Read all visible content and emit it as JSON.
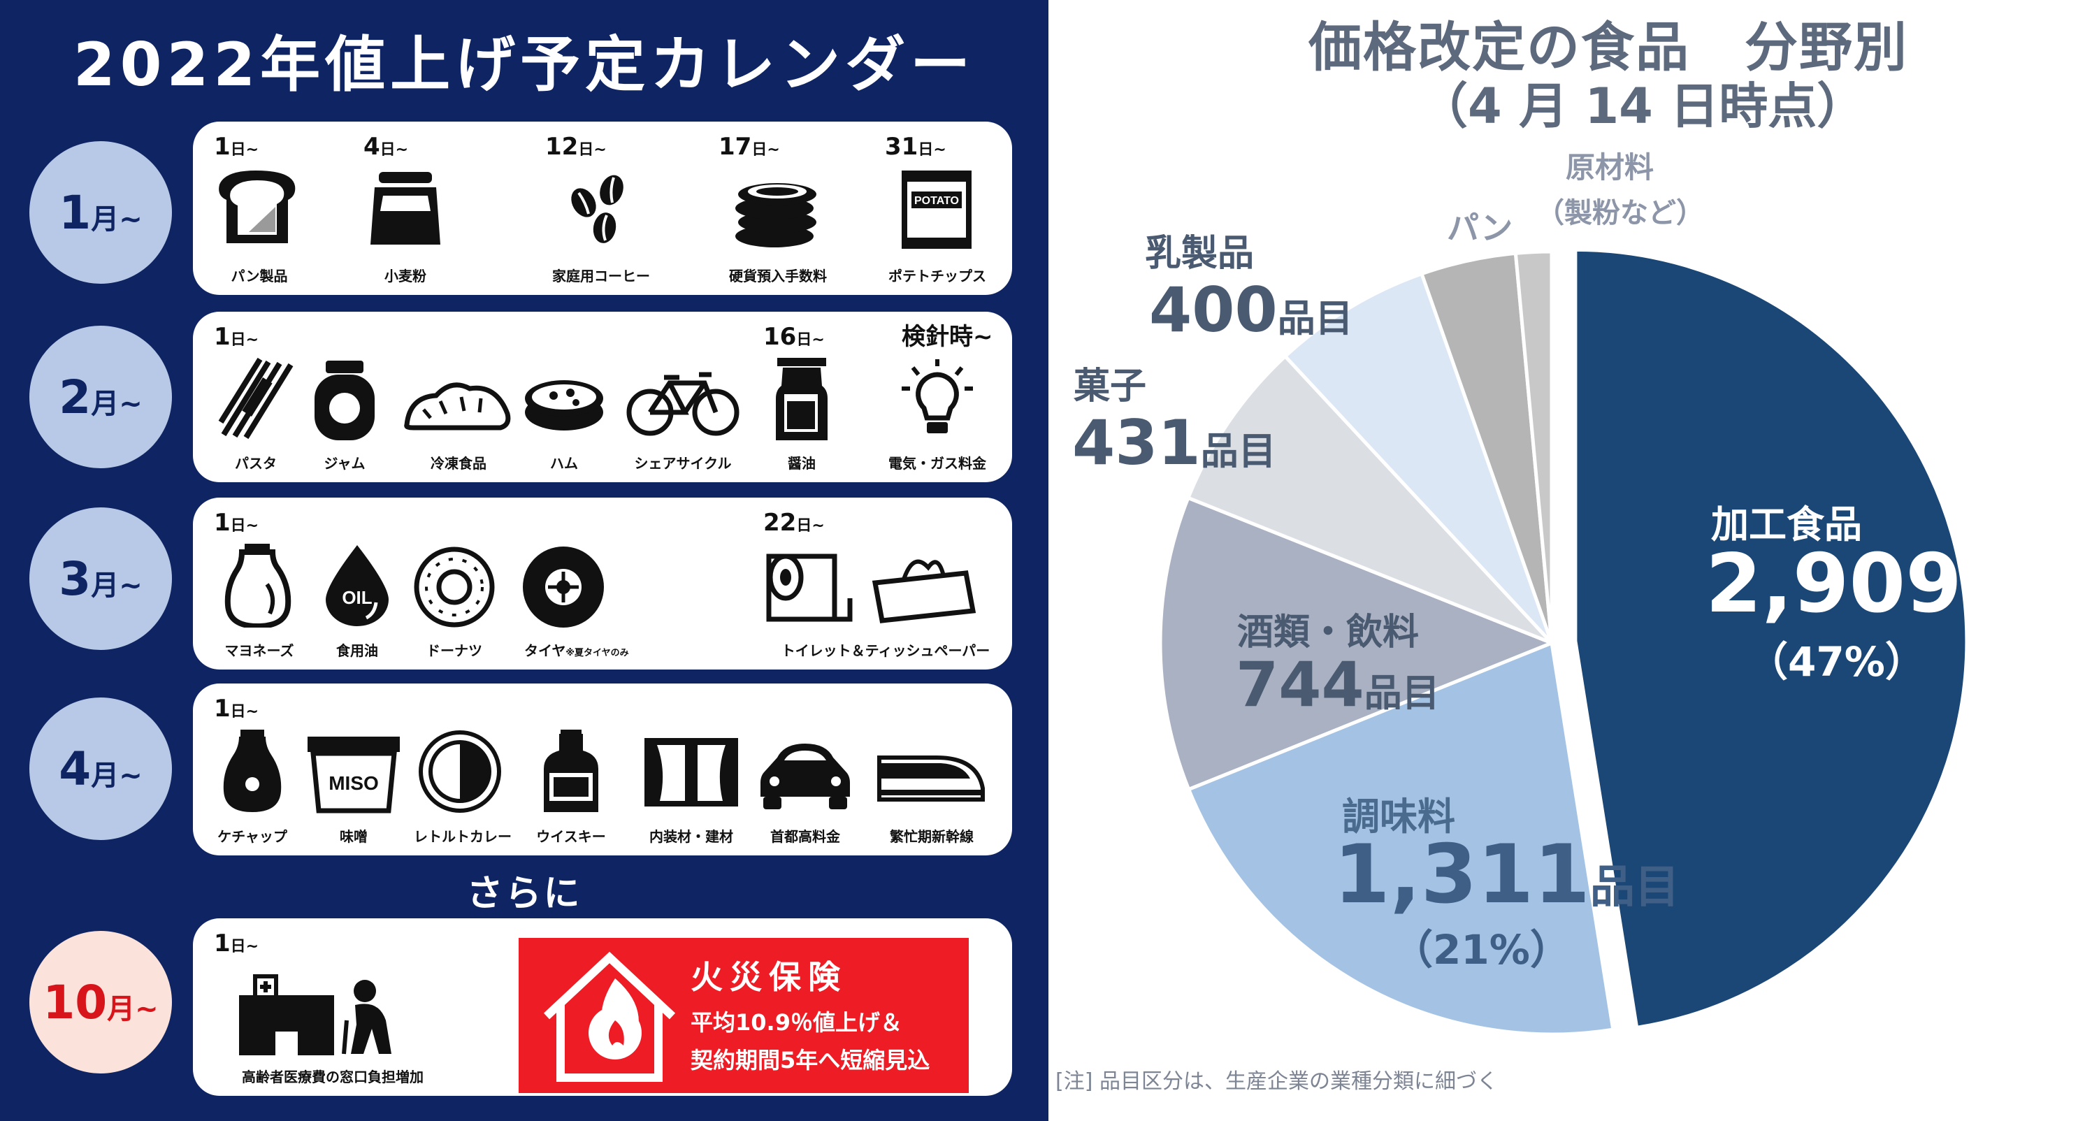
{
  "calendar": {
    "title": "2022年値上げ予定カレンダー",
    "day_unit": "日~",
    "months": [
      {
        "num": "1",
        "unit": "月~",
        "items": [
          {
            "date": "1",
            "label": "パン製品",
            "icon": "bread-icon"
          },
          {
            "date": "4",
            "label": "小麦粉",
            "icon": "flour-bag-icon"
          },
          {
            "date": "12",
            "label": "家庭用コーヒー",
            "icon": "coffee-beans-icon"
          },
          {
            "date": "17",
            "label": "硬貨預入手数料",
            "icon": "coin-stack-icon"
          },
          {
            "date": "31",
            "label": "ポテトチップス",
            "icon": "potato-chips-bag-icon",
            "text": "POTATO"
          }
        ]
      },
      {
        "num": "2",
        "unit": "月~",
        "items": [
          {
            "date": "1",
            "label": "パスタ",
            "icon": "pasta-icon"
          },
          {
            "date": "",
            "label": "ジャム",
            "icon": "jam-jar-icon"
          },
          {
            "date": "",
            "label": "冷凍食品",
            "icon": "gyoza-icon"
          },
          {
            "date": "",
            "label": "ハム",
            "icon": "ham-icon"
          },
          {
            "date": "",
            "label": "シェアサイクル",
            "icon": "bicycle-icon"
          },
          {
            "date": "16",
            "label": "醤油",
            "icon": "soy-sauce-icon"
          },
          {
            "date": "検針時~",
            "label": "電気・ガス料金",
            "icon": "light-bulb-icon"
          }
        ]
      },
      {
        "num": "3",
        "unit": "月~",
        "items": [
          {
            "date": "1",
            "label": "マヨネーズ",
            "icon": "mayonnaise-icon"
          },
          {
            "date": "",
            "label": "食用油",
            "icon": "oil-drop-icon",
            "text": "OIL"
          },
          {
            "date": "",
            "label": "ドーナツ",
            "icon": "donut-icon"
          },
          {
            "date": "",
            "label": "タイヤ",
            "note": "※夏タイヤのみ",
            "icon": "tire-icon"
          },
          {
            "date": "22",
            "label": "トイレット＆ティッシュペーパー",
            "icon": "toilet-paper-icon"
          }
        ]
      },
      {
        "num": "4",
        "unit": "月~",
        "items": [
          {
            "date": "1",
            "label": "ケチャップ",
            "icon": "ketchup-icon"
          },
          {
            "date": "",
            "label": "味噌",
            "icon": "miso-icon",
            "text": "MISO"
          },
          {
            "date": "",
            "label": "レトルトカレー",
            "icon": "curry-plate-icon"
          },
          {
            "date": "",
            "label": "ウイスキー",
            "icon": "whisky-bottle-icon"
          },
          {
            "date": "",
            "label": "内装材・建材",
            "icon": "window-curtain-icon"
          },
          {
            "date": "",
            "label": "首都高料金",
            "icon": "car-icon"
          },
          {
            "date": "",
            "label": "繁忙期新幹線",
            "icon": "bullet-train-icon"
          }
        ]
      }
    ],
    "furthermore": "さらに",
    "october": {
      "num": "10",
      "unit": "月~",
      "date": "1",
      "medical_label": "高齢者医療費の窓口負担増加",
      "fire_title": "火災保険",
      "fire_line1": "平均10.9％値上げ＆",
      "fire_line2": "契約期間5年へ短縮見込"
    }
  },
  "colors": {
    "navy": "#0f2563",
    "month_circle": "#b7c9e6",
    "october_circle": "#fbe2da",
    "red": "#ee1c25",
    "pie_processed": "#1b4776",
    "pie_seasoning": "#a4c3e4",
    "pie_drinks": "#a9b1c2",
    "pie_snacks": "#dbdee3",
    "pie_dairy": "#dbe7f5",
    "pie_bread": "#b5b5b5",
    "pie_raw": "#c8c8c8"
  },
  "chart_data": {
    "type": "pie",
    "title": "価格改定の食品　分野別",
    "subtitle": "（4 月 14 日時点）",
    "note": "[注]  品目区分は、生産企業の業種分類に細づく",
    "unit": "品目",
    "slices": [
      {
        "name": "加工食品",
        "value": 2909,
        "display": "2,909",
        "pct": "（47%）"
      },
      {
        "name": "調味料",
        "value": 1311,
        "display": "1,311",
        "pct": "（21%）"
      },
      {
        "name": "酒類・飲料",
        "value": 744,
        "display": "744",
        "pct": ""
      },
      {
        "name": "菓子",
        "value": 431,
        "display": "431",
        "pct": ""
      },
      {
        "name": "乳製品",
        "value": 400,
        "display": "400",
        "pct": ""
      },
      {
        "name": "パン",
        "value": 240,
        "display": "",
        "pct": ""
      },
      {
        "name": "原材料",
        "sub": "（製粉など）",
        "value": 90,
        "display": "",
        "pct": ""
      }
    ]
  }
}
